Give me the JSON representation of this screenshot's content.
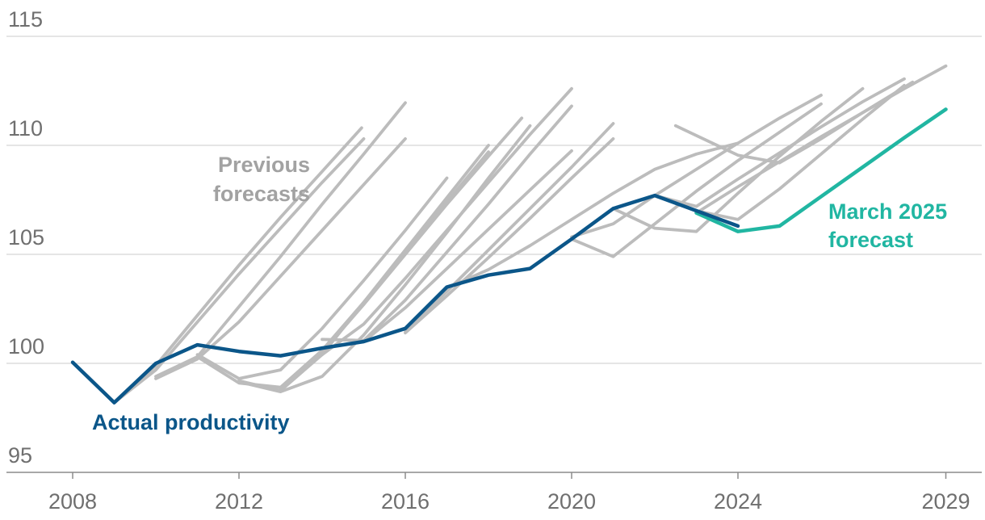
{
  "chart_data": {
    "type": "line",
    "title": "",
    "xlabel": "",
    "ylabel": "",
    "xlim": [
      2008,
      2029
    ],
    "ylim": [
      95,
      115
    ],
    "grid": true,
    "x_axis": {
      "ticks": [
        {
          "value": 2008,
          "label": "2008"
        },
        {
          "value": 2012,
          "label": "2012"
        },
        {
          "value": 2016,
          "label": "2016"
        },
        {
          "value": 2020,
          "label": "2020"
        },
        {
          "value": 2024,
          "label": "2024"
        },
        {
          "value": 2029,
          "label": "2029"
        }
      ]
    },
    "y_axis": {
      "ticks": [
        {
          "value": 95,
          "label": "95"
        },
        {
          "value": 100,
          "label": "100"
        },
        {
          "value": 105,
          "label": "105"
        },
        {
          "value": 110,
          "label": "110"
        },
        {
          "value": 115,
          "label": "115"
        }
      ]
    },
    "colors": {
      "actual": "#0b5689",
      "forecast": "#21b6a2",
      "previous": "#bcbcbc",
      "gridline": "#cbcbcb",
      "axis": "#8c8c8c",
      "tick_label": "#6f6f6f",
      "previous_label": "#a2a2a2"
    },
    "annotations": {
      "previous_forecasts": {
        "lines": [
          "Previous",
          "forecasts"
        ]
      },
      "actual_productivity": {
        "text": "Actual productivity"
      },
      "march_2025_forecast": {
        "lines": [
          "March 2025",
          "forecast"
        ]
      }
    },
    "series": [
      {
        "name": "Previous forecast",
        "role": "previous",
        "points": [
          [
            2009,
            98.2
          ],
          [
            2010,
            99.9
          ],
          [
            2011,
            102.2
          ],
          [
            2012,
            104.5
          ],
          [
            2013,
            106.7
          ],
          [
            2014,
            108.8
          ],
          [
            2014.95,
            110.8
          ]
        ]
      },
      {
        "name": "Previous forecast",
        "role": "previous",
        "points": [
          [
            2009,
            98.2
          ],
          [
            2010,
            99.7
          ],
          [
            2011,
            101.9
          ],
          [
            2012,
            104.1
          ],
          [
            2013,
            106.2
          ],
          [
            2014,
            108.3
          ],
          [
            2015,
            110.3
          ]
        ]
      },
      {
        "name": "Previous forecast",
        "role": "previous",
        "points": [
          [
            2010,
            99.4
          ],
          [
            2011,
            100.3
          ],
          [
            2012,
            102.6
          ],
          [
            2013,
            104.9
          ],
          [
            2014,
            107.3
          ],
          [
            2015,
            109.6
          ],
          [
            2016,
            111.95
          ]
        ]
      },
      {
        "name": "Previous forecast",
        "role": "previous",
        "points": [
          [
            2010,
            99.3
          ],
          [
            2011,
            100.2
          ],
          [
            2012,
            101.9
          ],
          [
            2013,
            104.0
          ],
          [
            2014,
            106.1
          ],
          [
            2015,
            108.2
          ],
          [
            2016,
            110.3
          ]
        ]
      },
      {
        "name": "Previous forecast",
        "role": "previous",
        "points": [
          [
            2011,
            100.4
          ],
          [
            2012,
            99.3
          ],
          [
            2013,
            99.7
          ],
          [
            2014,
            101.6
          ],
          [
            2015,
            103.8
          ],
          [
            2016,
            106.1
          ],
          [
            2017,
            108.5
          ]
        ]
      },
      {
        "name": "Previous forecast",
        "role": "previous",
        "points": [
          [
            2011,
            100.3
          ],
          [
            2012,
            99.1
          ],
          [
            2013,
            98.9
          ],
          [
            2014,
            100.6
          ],
          [
            2015,
            102.8
          ],
          [
            2016,
            105.1
          ],
          [
            2017,
            107.4
          ],
          [
            2018,
            109.7
          ]
        ]
      },
      {
        "name": "Previous forecast",
        "role": "previous",
        "points": [
          [
            2012,
            99.2
          ],
          [
            2013,
            98.75
          ],
          [
            2014,
            100.4
          ],
          [
            2015,
            102.8
          ],
          [
            2016,
            105.2
          ],
          [
            2017,
            107.6
          ],
          [
            2018,
            110.0
          ]
        ]
      },
      {
        "name": "Previous forecast",
        "role": "previous",
        "points": [
          [
            2012,
            99.15
          ],
          [
            2013,
            98.7
          ],
          [
            2014,
            99.4
          ],
          [
            2015,
            101.3
          ],
          [
            2016,
            103.6
          ],
          [
            2017,
            106.0
          ],
          [
            2018,
            108.5
          ],
          [
            2019,
            110.9
          ]
        ]
      },
      {
        "name": "Previous forecast",
        "role": "previous",
        "points": [
          [
            2013,
            98.8
          ],
          [
            2014,
            100.5
          ],
          [
            2015,
            102.7
          ],
          [
            2016,
            105.0
          ],
          [
            2017,
            107.3
          ],
          [
            2018,
            109.5
          ],
          [
            2018.8,
            111.25
          ]
        ]
      },
      {
        "name": "Previous forecast",
        "role": "previous",
        "points": [
          [
            2014,
            100.4
          ],
          [
            2015,
            101.8
          ],
          [
            2016,
            103.9
          ],
          [
            2017,
            106.1
          ],
          [
            2018,
            108.3
          ],
          [
            2019,
            110.5
          ],
          [
            2020,
            112.6
          ]
        ]
      },
      {
        "name": "Previous forecast",
        "role": "previous",
        "points": [
          [
            2014,
            101.1
          ],
          [
            2015,
            101.05
          ],
          [
            2016,
            102.9
          ],
          [
            2017,
            105.1
          ],
          [
            2018,
            107.3
          ],
          [
            2019,
            109.6
          ],
          [
            2020,
            111.8
          ]
        ]
      },
      {
        "name": "Previous forecast",
        "role": "previous",
        "points": [
          [
            2015,
            101.0
          ],
          [
            2016,
            102.55
          ],
          [
            2017,
            104.35
          ],
          [
            2018,
            106.15
          ],
          [
            2019,
            107.95
          ],
          [
            2020,
            109.75
          ]
        ]
      },
      {
        "name": "Previous forecast",
        "role": "previous",
        "points": [
          [
            2016,
            101.5
          ],
          [
            2017,
            103.3
          ],
          [
            2018,
            105.2
          ],
          [
            2019,
            107.1
          ],
          [
            2020,
            109.0
          ],
          [
            2021,
            111.0
          ]
        ]
      },
      {
        "name": "Previous forecast",
        "role": "previous",
        "points": [
          [
            2016,
            101.4
          ],
          [
            2017,
            103.1
          ],
          [
            2018,
            104.85
          ],
          [
            2019,
            106.65
          ],
          [
            2020,
            108.5
          ],
          [
            2021,
            110.3
          ]
        ]
      },
      {
        "name": "Previous forecast",
        "role": "previous",
        "points": [
          [
            2017,
            103.45
          ],
          [
            2018,
            104.3
          ],
          [
            2019,
            105.4
          ],
          [
            2020,
            106.6
          ],
          [
            2021,
            107.8
          ],
          [
            2022,
            108.9
          ],
          [
            2023,
            109.6
          ],
          [
            2024,
            110.1
          ]
        ]
      },
      {
        "name": "Previous forecast",
        "role": "previous",
        "points": [
          [
            2020,
            105.7
          ],
          [
            2021,
            104.9
          ],
          [
            2022,
            106.4
          ],
          [
            2023,
            107.9
          ],
          [
            2024,
            109.3
          ],
          [
            2025,
            110.6
          ],
          [
            2026,
            111.9
          ]
        ]
      },
      {
        "name": "Previous forecast",
        "role": "previous",
        "points": [
          [
            2020,
            105.8
          ],
          [
            2021,
            106.4
          ],
          [
            2022,
            107.7
          ],
          [
            2023,
            108.9
          ],
          [
            2024,
            110.1
          ],
          [
            2025,
            111.25
          ],
          [
            2026,
            112.3
          ]
        ]
      },
      {
        "name": "Previous forecast",
        "role": "previous",
        "points": [
          [
            2021,
            107.1
          ],
          [
            2022,
            106.2
          ],
          [
            2023,
            106.05
          ],
          [
            2024,
            107.8
          ],
          [
            2025,
            109.5
          ],
          [
            2026,
            111.1
          ],
          [
            2027,
            112.6
          ]
        ]
      },
      {
        "name": "Previous forecast",
        "role": "previous",
        "points": [
          [
            2022,
            107.7
          ],
          [
            2023,
            107.2
          ],
          [
            2024,
            108.45
          ],
          [
            2025,
            109.65
          ],
          [
            2026,
            110.85
          ],
          [
            2027,
            112.0
          ],
          [
            2028,
            113.05
          ]
        ]
      },
      {
        "name": "Previous forecast",
        "role": "previous",
        "points": [
          [
            2022.5,
            110.9
          ],
          [
            2024,
            109.55
          ],
          [
            2025,
            109.2
          ],
          [
            2026,
            110.3
          ],
          [
            2027,
            111.5
          ],
          [
            2028.2,
            112.9
          ]
        ]
      },
      {
        "name": "Previous forecast",
        "role": "previous",
        "points": [
          [
            2023,
            107.0
          ],
          [
            2024,
            106.6
          ],
          [
            2025,
            108.0
          ],
          [
            2026,
            109.6
          ],
          [
            2027,
            111.2
          ],
          [
            2028,
            112.75
          ]
        ]
      },
      {
        "name": "Previous forecast",
        "role": "previous",
        "points": [
          [
            2023,
            106.9
          ],
          [
            2024,
            108.1
          ],
          [
            2025,
            109.25
          ],
          [
            2026,
            110.4
          ],
          [
            2027,
            111.5
          ],
          [
            2028,
            112.6
          ],
          [
            2029,
            113.64
          ]
        ]
      },
      {
        "name": "March 2025 forecast",
        "role": "forecast",
        "points": [
          [
            2023,
            106.9
          ],
          [
            2024,
            106.05
          ],
          [
            2025,
            106.3
          ],
          [
            2026,
            107.65
          ],
          [
            2027,
            109.0
          ],
          [
            2028,
            110.35
          ],
          [
            2029,
            111.65
          ]
        ]
      },
      {
        "name": "Actual productivity",
        "role": "actual",
        "points": [
          [
            2008,
            100.05
          ],
          [
            2009,
            98.2
          ],
          [
            2010,
            100.0
          ],
          [
            2011,
            100.85
          ],
          [
            2012,
            100.55
          ],
          [
            2013,
            100.35
          ],
          [
            2014,
            100.7
          ],
          [
            2015,
            101.0
          ],
          [
            2016,
            101.6
          ],
          [
            2017,
            103.5
          ],
          [
            2018,
            104.05
          ],
          [
            2019,
            104.35
          ],
          [
            2020,
            105.7
          ],
          [
            2021,
            107.1
          ],
          [
            2022,
            107.7
          ],
          [
            2023,
            107.0
          ],
          [
            2024,
            106.3
          ]
        ]
      }
    ]
  }
}
